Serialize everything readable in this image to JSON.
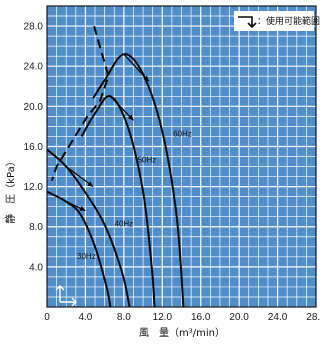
{
  "chart_data": {
    "type": "line",
    "xlabel": "風　量（m³/min）",
    "ylabel": "静　圧（kPa）",
    "xlim": [
      0,
      28
    ],
    "ylim": [
      0,
      30
    ],
    "x_ticks": [
      "0",
      "4.0",
      "8.0",
      "12.0",
      "16.0",
      "20.0",
      "24.0",
      "28.0"
    ],
    "y_ticks": [
      "4.0",
      "8.0",
      "12.0",
      "16.0",
      "20.0",
      "24.0",
      "28.0"
    ],
    "legend": {
      "label": "：使用可能範囲",
      "placement": "top-right"
    },
    "series": [
      {
        "name": "60Hz",
        "points": [
          [
            4.8,
            20.8
          ],
          [
            6.0,
            22.6
          ],
          [
            8.0,
            25.2
          ],
          [
            10.0,
            23.2
          ],
          [
            12.0,
            17.5
          ],
          [
            13.5,
            9.0
          ],
          [
            14.2,
            0.0
          ]
        ]
      },
      {
        "name": "50Hz",
        "points": [
          [
            3.6,
            17.0
          ],
          [
            5.0,
            19.3
          ],
          [
            6.6,
            21.0
          ],
          [
            8.4,
            18.0
          ],
          [
            10.0,
            11.5
          ],
          [
            10.9,
            4.0
          ],
          [
            11.2,
            0.0
          ]
        ]
      },
      {
        "name": "40Hz",
        "points": [
          [
            0.0,
            15.7
          ],
          [
            2.0,
            14.0
          ],
          [
            4.0,
            11.4
          ],
          [
            6.0,
            8.2
          ],
          [
            7.8,
            3.5
          ],
          [
            8.6,
            0.0
          ]
        ]
      },
      {
        "name": "30Hz",
        "points": [
          [
            0.0,
            11.5
          ],
          [
            2.0,
            10.5
          ],
          [
            3.5,
            9.2
          ],
          [
            5.0,
            6.0
          ],
          [
            6.2,
            2.0
          ],
          [
            6.6,
            0.0
          ]
        ]
      }
    ],
    "usable_range_boundary": [
      [
        4.9,
        28.0
      ],
      [
        6.4,
        23.0
      ],
      [
        5.5,
        20.5
      ],
      [
        4.2,
        19.0
      ],
      [
        1.0,
        14.0
      ],
      [
        0.5,
        12.6
      ]
    ],
    "grid": true
  }
}
